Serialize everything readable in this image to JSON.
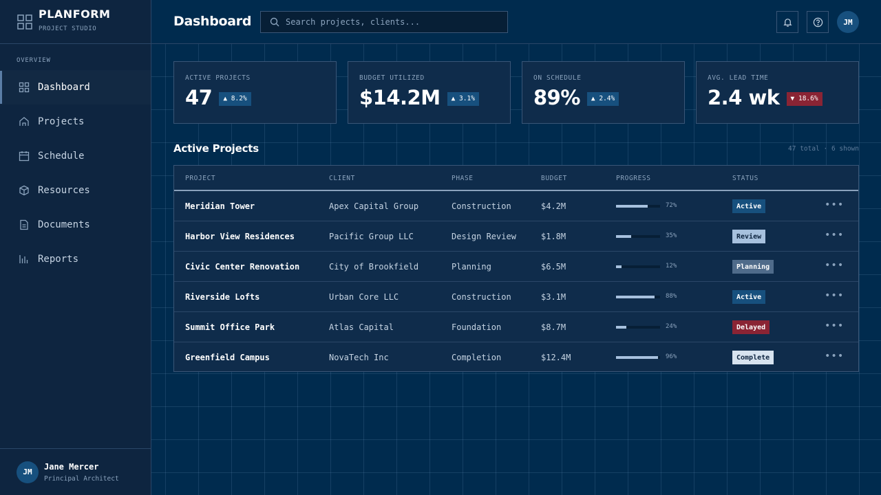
{
  "brand": {
    "title": "PLANFORM",
    "subtitle": "PROJECT STUDIO"
  },
  "sidebar": {
    "section": "OVERVIEW",
    "items": [
      {
        "label": "Dashboard",
        "icon": "grid-icon",
        "active": true
      },
      {
        "label": "Projects",
        "icon": "building-icon"
      },
      {
        "label": "Schedule",
        "icon": "calendar-icon"
      },
      {
        "label": "Resources",
        "icon": "box-icon"
      },
      {
        "label": "Documents",
        "icon": "document-icon"
      },
      {
        "label": "Reports",
        "icon": "bar-chart-icon"
      }
    ]
  },
  "user": {
    "initials": "JM",
    "name": "Jane Mercer",
    "role": "Principal Architect"
  },
  "header": {
    "title": "Dashboard",
    "search_placeholder": "Search projects, clients...",
    "avatar_initials": "JM"
  },
  "kpis": [
    {
      "label": "ACTIVE PROJECTS",
      "value": "47",
      "delta": "▲ 8.2%",
      "direction": "up"
    },
    {
      "label": "BUDGET UTILIZED",
      "value": "$14.2M",
      "delta": "▲ 3.1%",
      "direction": "up"
    },
    {
      "label": "ON SCHEDULE",
      "value": "89%",
      "delta": "▲ 2.4%",
      "direction": "up"
    },
    {
      "label": "AVG. LEAD TIME",
      "value": "2.4 wk",
      "delta": "▼ 18.6%",
      "direction": "down"
    }
  ],
  "projects_section": {
    "title": "Active Projects",
    "meta": "47 total · 6 shown",
    "columns": [
      "PROJECT",
      "CLIENT",
      "PHASE",
      "BUDGET",
      "PROGRESS",
      "STATUS"
    ],
    "rows": [
      {
        "project": "Meridian Tower",
        "client": "Apex Capital Group",
        "phase": "Construction",
        "budget": "$4.2M",
        "progress": 72,
        "progress_label": "72%",
        "status": "Active",
        "status_type": "active"
      },
      {
        "project": "Harbor View Residences",
        "client": "Pacific Group LLC",
        "phase": "Design Review",
        "budget": "$1.8M",
        "progress": 35,
        "progress_label": "35%",
        "status": "Review",
        "status_type": "review"
      },
      {
        "project": "Civic Center Renovation",
        "client": "City of Brookfield",
        "phase": "Planning",
        "budget": "$6.5M",
        "progress": 12,
        "progress_label": "12%",
        "status": "Planning",
        "status_type": "planning"
      },
      {
        "project": "Riverside Lofts",
        "client": "Urban Core LLC",
        "phase": "Construction",
        "budget": "$3.1M",
        "progress": 88,
        "progress_label": "88%",
        "status": "Active",
        "status_type": "active"
      },
      {
        "project": "Summit Office Park",
        "client": "Atlas Capital",
        "phase": "Foundation",
        "budget": "$8.7M",
        "progress": 24,
        "progress_label": "24%",
        "status": "Delayed",
        "status_type": "delayed"
      },
      {
        "project": "Greenfield Campus",
        "client": "NovaTech Inc",
        "phase": "Completion",
        "budget": "$12.4M",
        "progress": 96,
        "progress_label": "96%",
        "status": "Complete",
        "status_type": "complete"
      }
    ]
  },
  "colors": {
    "background": "#002b4e",
    "sidebar": "#0e2540",
    "accent": "#17507e",
    "danger": "#8a2434"
  }
}
